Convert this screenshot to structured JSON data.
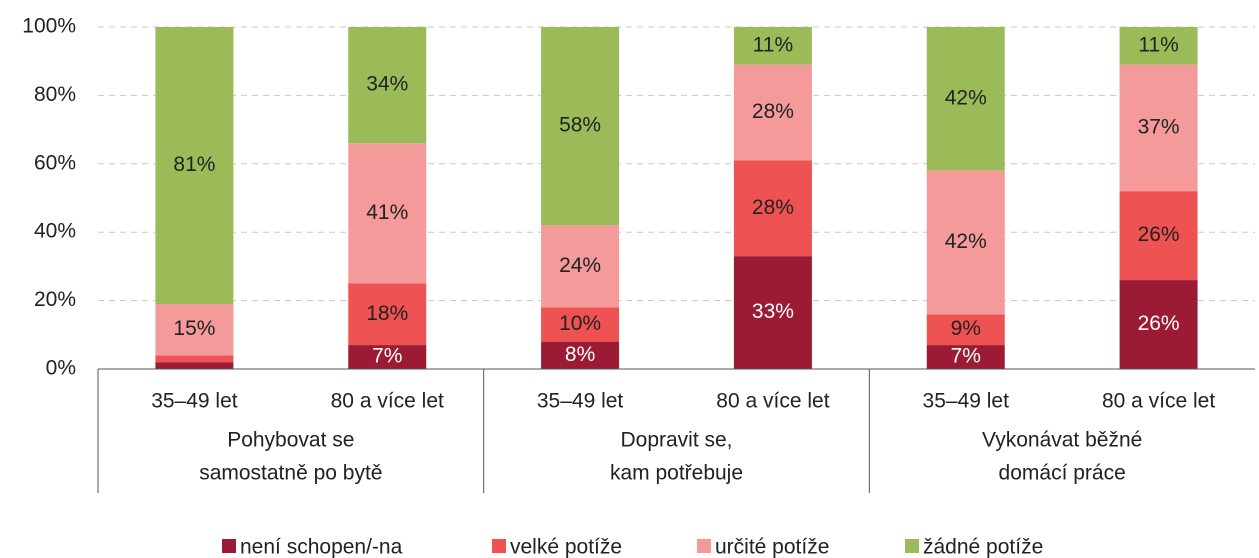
{
  "chart_data": {
    "type": "stacked-bar",
    "categories": [
      "35–49 let",
      "80 a více let",
      "35–49 let",
      "80 a více let",
      "35–49 let",
      "80 a více let"
    ],
    "groups": [
      [
        "Pohybovat se",
        "samostatně po bytě"
      ],
      [
        "Dopravit se,",
        "kam potřebuje"
      ],
      [
        "Vykonávat běžné",
        "domácí práce"
      ]
    ],
    "series": [
      {
        "name": "není schopen/-na",
        "color": "#9b1b35",
        "values": [
          2,
          7,
          8,
          33,
          7,
          26
        ],
        "value_labels": [
          null,
          "7%",
          "8%",
          "33%",
          "7%",
          "26%"
        ]
      },
      {
        "name": "velké potíže",
        "color": "#ee5253",
        "values": [
          2,
          18,
          10,
          28,
          9,
          26
        ],
        "value_labels": [
          null,
          "18%",
          "10%",
          "28%",
          "9%",
          "26%"
        ]
      },
      {
        "name": "určité potíže",
        "color": "#f59a9a",
        "values": [
          15,
          41,
          24,
          28,
          42,
          37
        ],
        "value_labels": [
          "15%",
          "41%",
          "24%",
          "28%",
          "42%",
          "37%"
        ]
      },
      {
        "name": "žádné potíže",
        "color": "#9bbb59",
        "values": [
          81,
          34,
          58,
          11,
          42,
          11
        ],
        "value_labels": [
          "81%",
          "34%",
          "58%",
          "11%",
          "42%",
          "11%"
        ]
      }
    ],
    "ylim": [
      0,
      100
    ],
    "yticks": [
      {
        "value": 0,
        "label": "0%"
      },
      {
        "value": 20,
        "label": "20%"
      },
      {
        "value": 40,
        "label": "40%"
      },
      {
        "value": 60,
        "label": "60%"
      },
      {
        "value": 80,
        "label": "80%"
      },
      {
        "value": 100,
        "label": "100%"
      }
    ],
    "grid": true,
    "legend": "bottom"
  }
}
